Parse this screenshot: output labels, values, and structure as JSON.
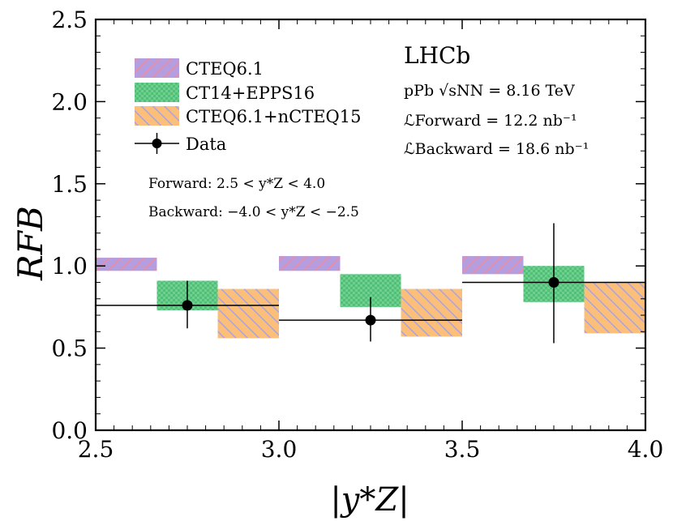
{
  "chart_data": {
    "type": "bar",
    "title": "",
    "xlabel": "|y*Z|",
    "ylabel": "RFB",
    "xlim": [
      2.5,
      4.0
    ],
    "ylim": [
      0.0,
      2.5
    ],
    "x_ticks": [
      "2.5",
      "3.0",
      "3.5",
      "4.0"
    ],
    "y_ticks": [
      "0.0",
      "0.5",
      "1.0",
      "1.5",
      "2.0",
      "2.5"
    ],
    "bins": [
      [
        2.5,
        3.0
      ],
      [
        3.0,
        3.5
      ],
      [
        3.5,
        4.0
      ]
    ],
    "series": [
      {
        "name": "CTEQ6.1",
        "kind": "band",
        "color": "#b49ee0",
        "hatch_color": "#f08a9a",
        "x_ranges": [
          [
            2.5,
            2.667
          ],
          [
            3.0,
            3.167
          ],
          [
            3.5,
            3.667
          ]
        ],
        "low": [
          0.97,
          0.97,
          0.95
        ],
        "high": [
          1.05,
          1.06,
          1.06
        ]
      },
      {
        "name": "CT14+EPPS16",
        "kind": "band",
        "color": "#5ec882",
        "hatch_color": "#5ec882",
        "x_ranges": [
          [
            2.667,
            2.833
          ],
          [
            3.167,
            3.333
          ],
          [
            3.667,
            3.833
          ]
        ],
        "low": [
          0.73,
          0.75,
          0.78
        ],
        "high": [
          0.91,
          0.95,
          1.0
        ]
      },
      {
        "name": "CTEQ6.1+nCTEQ15",
        "kind": "band",
        "color": "#fbbf7a",
        "hatch_color": "#a9a2e8",
        "x_ranges": [
          [
            2.833,
            3.0
          ],
          [
            3.333,
            3.5
          ],
          [
            3.833,
            4.0
          ]
        ],
        "low": [
          0.56,
          0.57,
          0.59
        ],
        "high": [
          0.86,
          0.86,
          0.9
        ]
      },
      {
        "name": "Data",
        "kind": "points",
        "color": "#000000",
        "x": [
          2.75,
          3.25,
          3.75
        ],
        "y": [
          0.76,
          0.67,
          0.9
        ],
        "xerr": [
          0.25,
          0.25,
          0.25
        ],
        "yerr": [
          [
            0.14,
            0.13,
            0.37
          ],
          [
            0.15,
            0.14,
            0.36
          ]
        ]
      }
    ],
    "legend_position": "top-left"
  },
  "annotations": {
    "experiment": "LHCb",
    "system": "pPb √sNN = 8.16 TeV",
    "lumi_forward": "ℒForward = 12.2 nb⁻¹",
    "lumi_backward": "ℒBackward = 18.6 nb⁻¹",
    "forward_range": "Forward: 2.5 < y*Z < 4.0",
    "backward_range": "Backward: −4.0 < y*Z < −2.5"
  }
}
